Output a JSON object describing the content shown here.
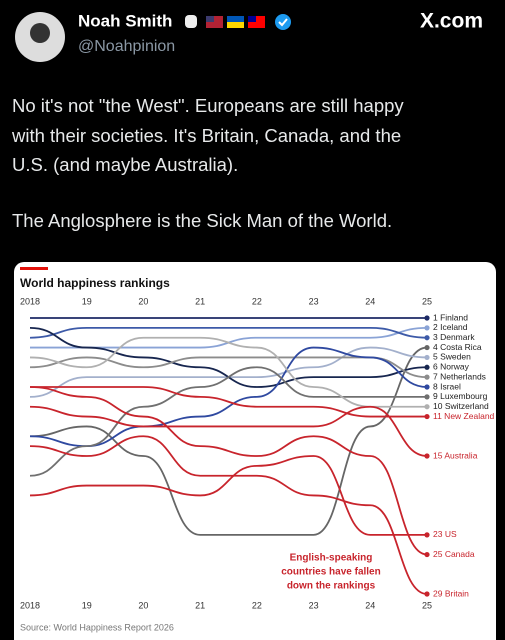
{
  "tweet": {
    "name": "Noah Smith",
    "handle": "@Noahpinion",
    "site": "X.com",
    "text": [
      "No it's not \"the West\". Europeans are still happy",
      "with their societies. It's Britain, Canada, and the",
      "U.S. (and maybe Australia).",
      "The Anglosphere is the Sick Man of the World."
    ]
  },
  "chart_data": {
    "type": "bump",
    "title": "World happiness rankings",
    "categories": [
      "2018",
      "19",
      "20",
      "21",
      "22",
      "23",
      "24",
      "25"
    ],
    "ylim": [
      1,
      29
    ],
    "y_reversed": true,
    "annotation": [
      "English-speaking",
      "countries have fallen",
      "down the rankings"
    ],
    "source": "Source: World Happiness Report 2026",
    "series": [
      {
        "name": "1 Finland",
        "color": "#1d2a66",
        "values": [
          1,
          1,
          1,
          1,
          1,
          1,
          1,
          1
        ]
      },
      {
        "name": "2 Iceland",
        "color": "#8aa3d6",
        "values": [
          4,
          4,
          4,
          4,
          3,
          3,
          3,
          2
        ]
      },
      {
        "name": "3 Denmark",
        "color": "#3d5aa8",
        "values": [
          3,
          2,
          2,
          2,
          2,
          2,
          2,
          3
        ]
      },
      {
        "name": "4 Costa Rica",
        "color": "#666666",
        "values": [
          13,
          12,
          15,
          23,
          23,
          23,
          12,
          4
        ]
      },
      {
        "name": "5 Sweden",
        "color": "#a3b0cc",
        "values": [
          9,
          7,
          7,
          7,
          7,
          6,
          4,
          5
        ]
      },
      {
        "name": "6 Norway",
        "color": "#17264f",
        "values": [
          2,
          4,
          5,
          6,
          8,
          7,
          7,
          6
        ]
      },
      {
        "name": "7 Netherlands",
        "color": "#8c8c8c",
        "values": [
          6,
          5,
          6,
          5,
          5,
          5,
          5,
          7
        ]
      },
      {
        "name": "8 Israel",
        "color": "#2f49a0",
        "values": [
          13,
          14,
          12,
          11,
          9,
          4,
          5,
          8
        ]
      },
      {
        "name": "9 Luxembourg",
        "color": "#707070",
        "values": [
          17,
          14,
          10,
          8,
          6,
          9,
          9,
          9
        ]
      },
      {
        "name": "10 Switzerland",
        "color": "#b0b0b0",
        "values": [
          5,
          6,
          3,
          3,
          4,
          8,
          10,
          10
        ]
      },
      {
        "name": "11 New Zealand",
        "color": "#c8242c",
        "values": [
          8,
          8,
          8,
          9,
          10,
          10,
          11,
          11
        ]
      },
      {
        "name": "15 Australia",
        "color": "#c8242c",
        "values": [
          10,
          11,
          12,
          12,
          12,
          12,
          10,
          15
        ]
      },
      {
        "name": "23 US",
        "color": "#c8242c",
        "values": [
          19,
          18,
          18,
          19,
          16,
          15,
          23,
          23
        ]
      },
      {
        "name": "25 Canada",
        "color": "#c8242c",
        "values": [
          8,
          9,
          11,
          14,
          15,
          13,
          15,
          25
        ]
      },
      {
        "name": "29 Britain",
        "color": "#c8242c",
        "values": [
          14,
          15,
          13,
          17,
          17,
          19,
          20,
          29
        ]
      }
    ]
  }
}
